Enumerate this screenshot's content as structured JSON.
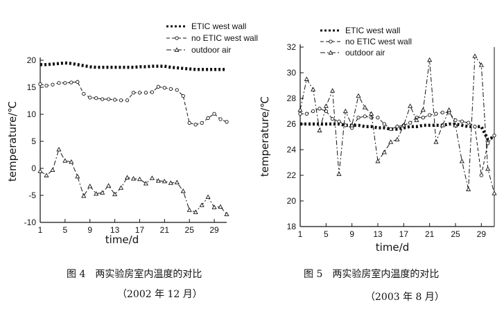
{
  "chart_data": [
    {
      "type": "line",
      "xlabel": "time/d",
      "ylabel": "temperature/℃",
      "xlim": [
        1,
        31
      ],
      "ylim": [
        -10,
        20
      ],
      "xticks": [
        1,
        5,
        9,
        13,
        17,
        21,
        25,
        29
      ],
      "yticks": [
        -10,
        -5,
        0,
        5,
        10,
        15,
        20
      ],
      "grid": false,
      "legend_position": "top-right, outside plot",
      "x": [
        1,
        2,
        3,
        4,
        5,
        6,
        7,
        8,
        9,
        10,
        11,
        12,
        13,
        14,
        15,
        16,
        17,
        18,
        19,
        20,
        21,
        22,
        23,
        24,
        25,
        26,
        27,
        28,
        29,
        30,
        31
      ],
      "series": [
        {
          "name": "ETIC west wall",
          "style": "dotted-heavy",
          "marker": "square",
          "values": [
            19.2,
            19.2,
            19.3,
            19.4,
            19.5,
            19.4,
            19.2,
            19.0,
            18.8,
            18.7,
            18.7,
            18.7,
            18.7,
            18.7,
            18.7,
            18.7,
            18.8,
            18.8,
            18.9,
            18.9,
            18.9,
            18.7,
            18.6,
            18.5,
            18.4,
            18.3,
            18.3,
            18.3,
            18.3,
            18.3,
            18.3
          ]
        },
        {
          "name": "no ETIC west wall",
          "style": "dashed",
          "marker": "circle",
          "values": [
            15.6,
            15.3,
            15.5,
            15.8,
            15.8,
            15.9,
            16.0,
            13.8,
            13.1,
            13.0,
            12.8,
            12.8,
            12.7,
            12.6,
            12.6,
            14.0,
            14.0,
            14.0,
            14.1,
            15.1,
            14.9,
            14.7,
            14.5,
            13.4,
            8.4,
            8.1,
            8.4,
            9.3,
            10.1,
            9.1,
            8.6
          ]
        },
        {
          "name": "outdoor air",
          "style": "dash-dot",
          "marker": "triangle",
          "values": [
            -0.5,
            -1.3,
            -0.3,
            3.5,
            1.4,
            1.2,
            -1.5,
            -5.1,
            -3.3,
            -4.7,
            -4.5,
            -3.2,
            -4.8,
            -3.6,
            -1.7,
            -1.9,
            -2.0,
            -2.8,
            -1.8,
            -2.3,
            -2.4,
            -2.7,
            -2.6,
            -4.2,
            -7.7,
            -8.1,
            -6.8,
            -5.3,
            -7.2,
            -7.1,
            -8.5
          ]
        }
      ],
      "caption": {
        "line1": "图 4　两实验房室内温度的对比",
        "line2": "（2002 年 12 月）"
      }
    },
    {
      "type": "line",
      "xlabel": "time/d",
      "ylabel": "temperature/℃",
      "xlim": [
        1,
        31
      ],
      "ylim": [
        18,
        32
      ],
      "xticks": [
        1,
        5,
        9,
        13,
        17,
        21,
        25,
        29
      ],
      "yticks": [
        18,
        20,
        22,
        24,
        26,
        28,
        30,
        32
      ],
      "grid": false,
      "legend_position": "top, inside plot",
      "x": [
        1,
        2,
        3,
        4,
        5,
        6,
        7,
        8,
        9,
        10,
        11,
        12,
        13,
        14,
        15,
        16,
        17,
        18,
        19,
        20,
        21,
        22,
        23,
        24,
        25,
        26,
        27,
        28,
        29,
        30,
        31
      ],
      "series": [
        {
          "name": "ETIC west wall",
          "style": "dotted-heavy",
          "marker": "square",
          "values": [
            26.0,
            26.0,
            26.0,
            26.0,
            26.0,
            26.0,
            26.0,
            25.9,
            25.9,
            25.9,
            25.8,
            25.8,
            25.7,
            25.7,
            25.6,
            25.6,
            25.7,
            25.8,
            25.8,
            25.9,
            25.9,
            25.9,
            25.9,
            26.0,
            26.0,
            25.9,
            25.8,
            25.8,
            25.8,
            24.8,
            25.0
          ]
        },
        {
          "name": "no ETIC west wall",
          "style": "dashed",
          "marker": "circle",
          "values": [
            26.8,
            26.8,
            27.0,
            27.2,
            27.0,
            26.4,
            26.2,
            25.9,
            25.7,
            26.5,
            26.6,
            26.5,
            26.5,
            26.0,
            25.6,
            25.8,
            25.9,
            26.1,
            26.5,
            26.5,
            26.7,
            26.8,
            26.9,
            26.9,
            26.3,
            26.2,
            26.1,
            25.8,
            22.0,
            24.5,
            25.1
          ]
        },
        {
          "name": "outdoor air",
          "style": "dash-dot",
          "marker": "triangle",
          "values": [
            27.1,
            29.5,
            28.7,
            25.5,
            27.4,
            28.6,
            22.1,
            27.0,
            25.9,
            28.2,
            27.3,
            26.8,
            23.1,
            23.8,
            24.6,
            24.8,
            25.9,
            27.4,
            26.3,
            27.1,
            31.0,
            24.6,
            25.9,
            27.1,
            25.9,
            23.1,
            20.9,
            31.3,
            30.6,
            22.5,
            20.6
          ]
        }
      ],
      "caption": {
        "line1": "图 5　两实验房室内温度的对比",
        "line2": "（2003 年 8 月）"
      }
    }
  ]
}
